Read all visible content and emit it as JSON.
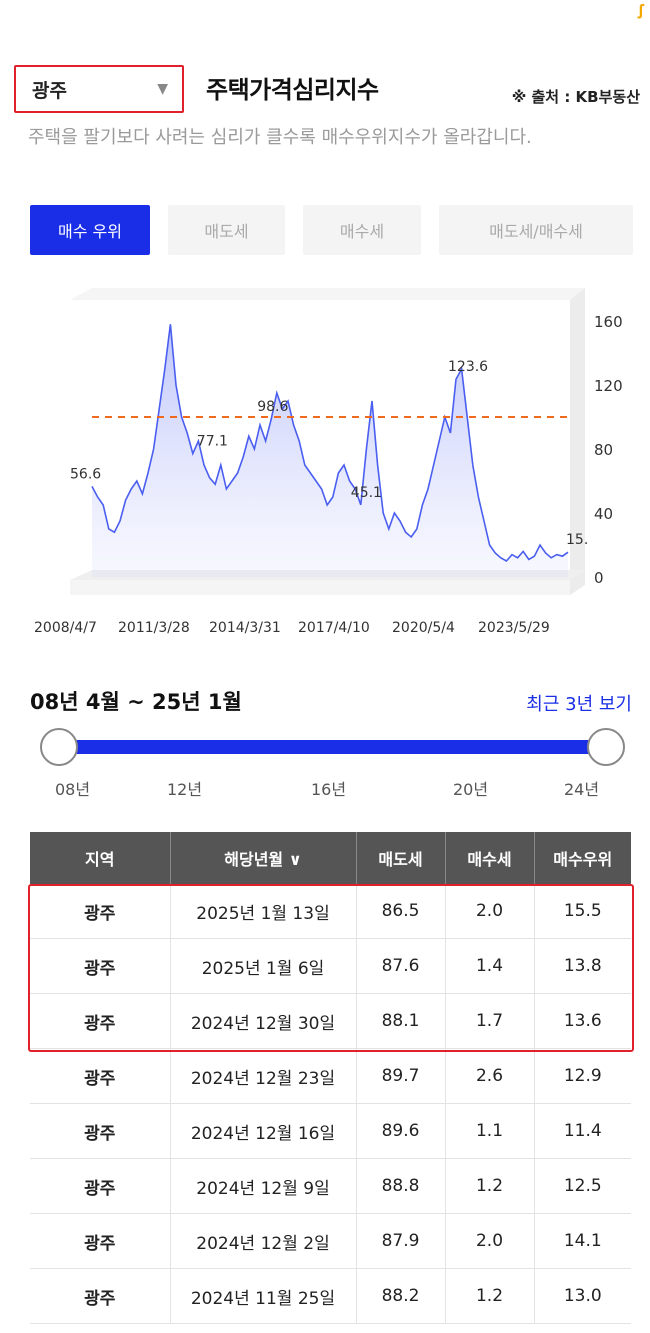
{
  "region": {
    "selected": "광주"
  },
  "header": {
    "title": "주택가격심리지수",
    "source": "※ 출처 : KB부동산",
    "description": "주택을 팔기보다 사려는 심리가 클수록 매수우위지수가 올라갑니다."
  },
  "tabs": [
    {
      "label": "매수 우위",
      "active": true
    },
    {
      "label": "매도세",
      "active": false
    },
    {
      "label": "매수세",
      "active": false
    },
    {
      "label": "매도세/매수세",
      "active": false
    }
  ],
  "chart_data": {
    "type": "area",
    "x_ticks": [
      "2008/4/7",
      "2011/3/28",
      "2014/3/31",
      "2017/4/10",
      "2020/5/4",
      "2023/5/29"
    ],
    "y_ticks": [
      0,
      40,
      80,
      120,
      160
    ],
    "ylim": [
      0,
      170
    ],
    "reference_line": 100,
    "annotations": [
      {
        "label": "56.6",
        "value": 56.6
      },
      {
        "label": "77.1",
        "value": 77.1
      },
      {
        "label": "98.6",
        "value": 98.6
      },
      {
        "label": "45.1",
        "value": 45.1
      },
      {
        "label": "123.6",
        "value": 123.6
      },
      {
        "label": "15.",
        "value": 15.5
      }
    ],
    "series": [
      {
        "values": [
          56.6,
          50,
          45,
          30,
          28,
          35,
          48,
          55,
          60,
          52,
          65,
          80,
          105,
          130,
          158,
          120,
          100,
          90,
          77.1,
          85,
          70,
          62,
          58,
          70,
          55,
          60,
          65,
          75,
          88,
          80,
          95,
          85,
          98.6,
          115,
          105,
          110,
          95,
          85,
          70,
          65,
          60,
          55,
          45,
          50,
          65,
          70,
          60,
          55,
          45.1,
          80,
          110,
          70,
          40,
          30,
          40,
          35,
          28,
          25,
          30,
          45,
          55,
          70,
          85,
          100,
          90,
          123.6,
          130,
          100,
          70,
          50,
          35,
          20,
          15,
          12,
          10,
          14,
          12,
          16,
          11,
          13,
          20,
          15,
          12,
          14,
          13,
          15.5
        ]
      }
    ],
    "colors": {
      "line": "#4a5ef0",
      "reference": "#ef6a1f"
    }
  },
  "range": {
    "label": "08년 4월 ~ 25년 1월",
    "recent_link": "최근 3년 보기",
    "ticks": [
      "08년",
      "12년",
      "16년",
      "20년",
      "24년"
    ]
  },
  "table": {
    "headers": [
      "지역",
      "해당년월 ∨",
      "매도세",
      "매수세",
      "매수우위"
    ],
    "rows": [
      [
        "광주",
        "2025년 1월 13일",
        "86.5",
        "2.0",
        "15.5"
      ],
      [
        "광주",
        "2025년 1월 6일",
        "87.6",
        "1.4",
        "13.8"
      ],
      [
        "광주",
        "2024년 12월 30일",
        "88.1",
        "1.7",
        "13.6"
      ],
      [
        "광주",
        "2024년 12월 23일",
        "89.7",
        "2.6",
        "12.9"
      ],
      [
        "광주",
        "2024년 12월 16일",
        "89.6",
        "1.1",
        "11.4"
      ],
      [
        "광주",
        "2024년 12월 9일",
        "88.8",
        "1.2",
        "12.5"
      ],
      [
        "광주",
        "2024년 12월 2일",
        "87.9",
        "2.0",
        "14.1"
      ],
      [
        "광주",
        "2024년 11월 25일",
        "88.2",
        "1.2",
        "13.0"
      ]
    ]
  }
}
